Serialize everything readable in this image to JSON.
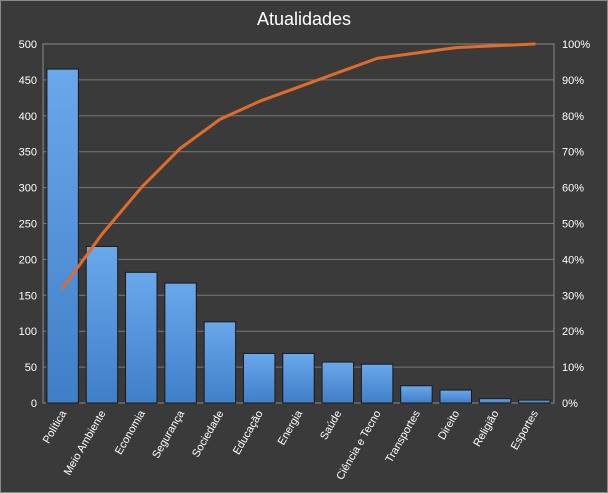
{
  "chart_data": {
    "type": "bar",
    "title": "Atualidades",
    "categories": [
      "Política",
      "Meio Ambiente",
      "Economia",
      "Segurança",
      "Sociedade",
      "Educação",
      "Energia",
      "Saúde",
      "Ciência e Tecno",
      "Transportes",
      "Direito",
      "Religião",
      "Esportes"
    ],
    "series": [
      {
        "type": "bar",
        "axis": "left",
        "color": "#4a90d9",
        "values": [
          465,
          218,
          182,
          167,
          113,
          69,
          69,
          57,
          54,
          24,
          18,
          6,
          4
        ]
      },
      {
        "type": "line",
        "axis": "right",
        "color": "#e06c2c",
        "values": [
          32,
          47,
          60,
          71,
          79,
          84,
          88,
          92,
          96,
          97.5,
          99,
          99.5,
          100
        ]
      }
    ],
    "y_left": {
      "min": 0,
      "max": 500,
      "ticks": [
        0,
        50,
        100,
        150,
        200,
        250,
        300,
        350,
        400,
        450,
        500
      ]
    },
    "y_right": {
      "min": 0,
      "max": 100,
      "ticks": [
        "0%",
        "10%",
        "20%",
        "30%",
        "40%",
        "50%",
        "60%",
        "70%",
        "80%",
        "90%",
        "100%"
      ]
    },
    "grid": true,
    "legend": "none"
  }
}
